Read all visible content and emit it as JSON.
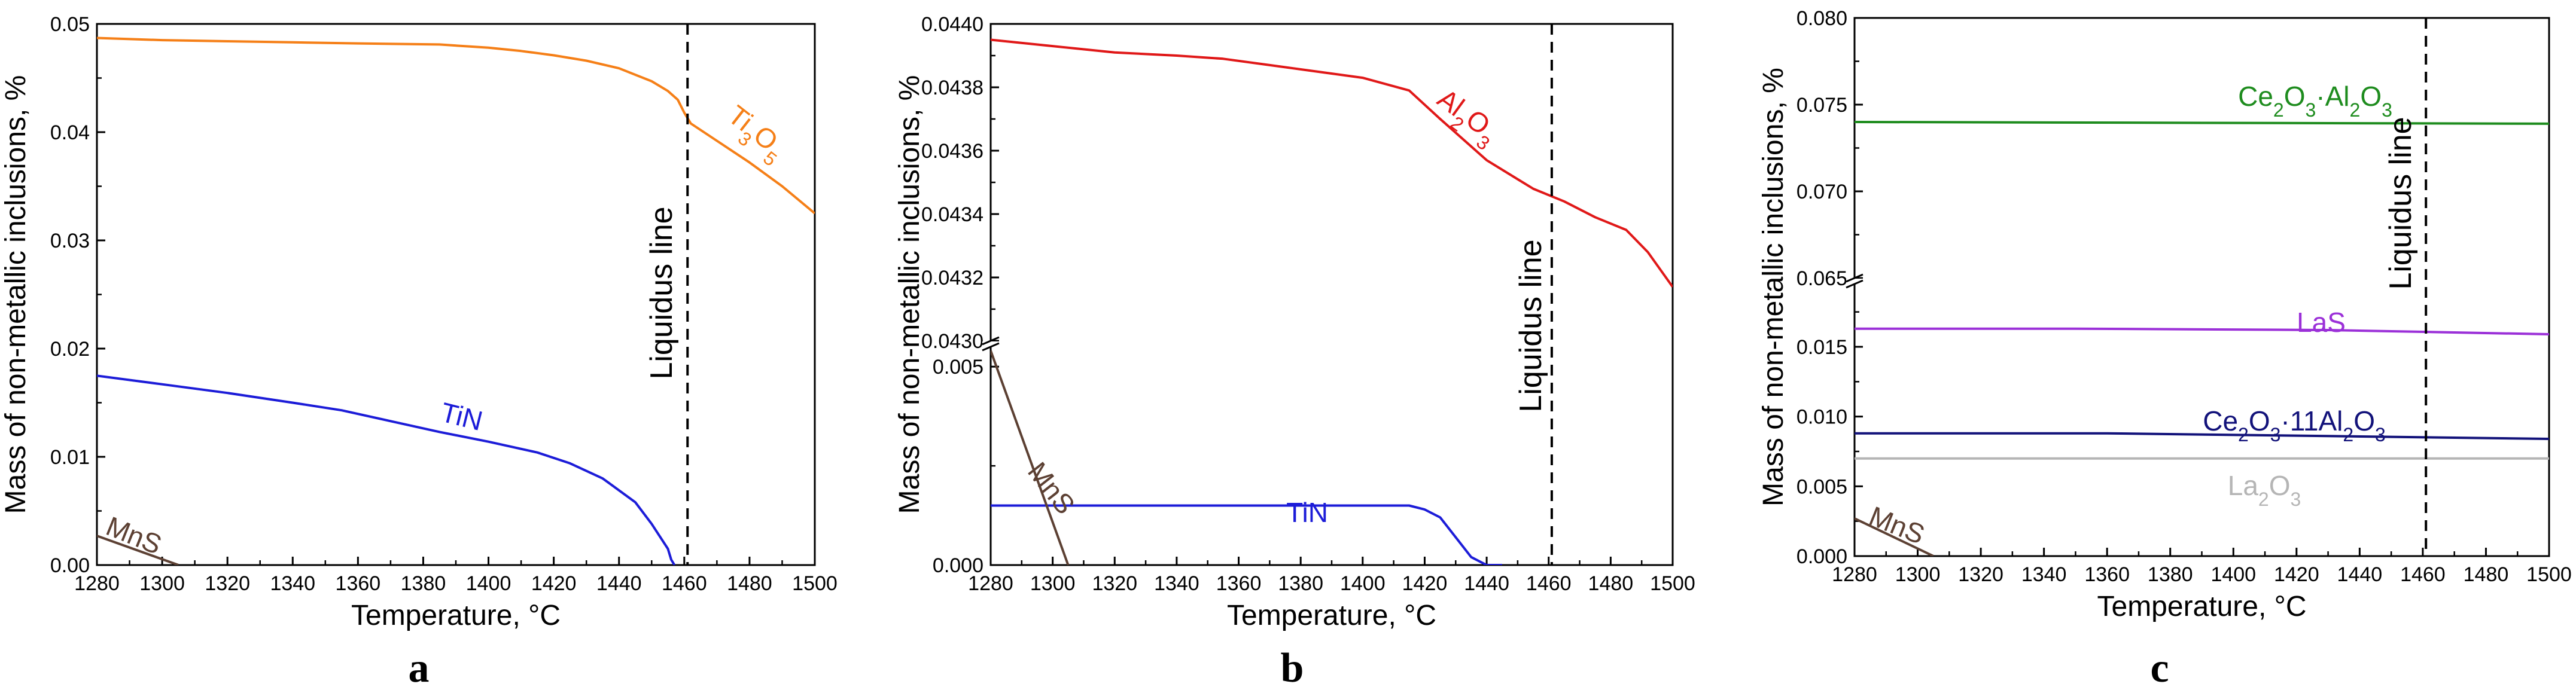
{
  "chart_data": [
    {
      "type": "line",
      "panel_label": "a",
      "xlabel": "Temperature, °C",
      "ylabel": "Mass of non-metallic inclusions, %",
      "xlim": [
        1280,
        1500
      ],
      "ylim": [
        0,
        0.05
      ],
      "xticks": [
        "1280",
        "1300",
        "1320",
        "1340",
        "1360",
        "1380",
        "1400",
        "1420",
        "1440",
        "1460",
        "1480",
        "1500"
      ],
      "yticks": [
        "0.00",
        "0.01",
        "0.02",
        "0.03",
        "0.04",
        "0.05"
      ],
      "liquidus": {
        "x": 1461,
        "label": "Liquidus line"
      },
      "series": [
        {
          "name": "Ti3O5",
          "label_main": "Ti",
          "label_sub1": "3",
          "label_mid": "O",
          "label_sub2": "5",
          "color": "#F57F17",
          "x": [
            1280,
            1300,
            1320,
            1340,
            1360,
            1385,
            1400,
            1410,
            1420,
            1430,
            1440,
            1450,
            1455,
            1458,
            1460,
            1462,
            1470,
            1480,
            1490,
            1500
          ],
          "y": [
            0.0487,
            0.0485,
            0.0484,
            0.0483,
            0.0482,
            0.0481,
            0.0478,
            0.0475,
            0.0471,
            0.0466,
            0.0459,
            0.0447,
            0.0438,
            0.043,
            0.0418,
            0.0408,
            0.0392,
            0.0372,
            0.035,
            0.0325
          ]
        },
        {
          "name": "TiN",
          "label_main": "TiN",
          "color": "#1C1CD8",
          "x": [
            1280,
            1300,
            1320,
            1340,
            1355,
            1370,
            1385,
            1400,
            1415,
            1425,
            1435,
            1445,
            1450,
            1455,
            1456,
            1457
          ],
          "y": [
            0.0175,
            0.0167,
            0.0159,
            0.015,
            0.0143,
            0.0133,
            0.0123,
            0.0114,
            0.0104,
            0.0094,
            0.008,
            0.0058,
            0.0038,
            0.0015,
            0.0005,
            0.0
          ]
        },
        {
          "name": "MnS",
          "label_main": "MnS",
          "color": "#5C4033",
          "x": [
            1280,
            1305
          ],
          "y": [
            0.0027,
            0.0
          ]
        }
      ]
    },
    {
      "type": "line",
      "panel_label": "b",
      "xlabel": "Temperature, °C",
      "ylabel": "Mass of non-metallic inclusions, %",
      "xlim": [
        1280,
        1500
      ],
      "y_axis_break": {
        "lower": [
          0,
          0.0055
        ],
        "upper": [
          0.043,
          0.044
        ]
      },
      "xticks": [
        "1280",
        "1300",
        "1320",
        "1340",
        "1360",
        "1380",
        "1400",
        "1420",
        "1440",
        "1460",
        "1480",
        "1500"
      ],
      "yticks_lower": [
        "0.000",
        "0.005"
      ],
      "yticks_upper": [
        "0.0430",
        "0.0432",
        "0.0434",
        "0.0436",
        "0.0438",
        "0.0440"
      ],
      "liquidus": {
        "x": 1461,
        "label": "Liquidus line"
      },
      "series": [
        {
          "name": "Al2O3",
          "label_main": "Al",
          "label_sub1": "2",
          "label_mid": "O",
          "label_sub2": "3",
          "color": "#E01818",
          "x": [
            1280,
            1300,
            1320,
            1340,
            1355,
            1370,
            1385,
            1400,
            1415,
            1425,
            1440,
            1455,
            1465,
            1475,
            1485,
            1492,
            1500
          ],
          "y": [
            0.04395,
            0.04393,
            0.04391,
            0.0439,
            0.04389,
            0.04387,
            0.04385,
            0.04383,
            0.04379,
            0.0437,
            0.04357,
            0.04348,
            0.04344,
            0.04339,
            0.04335,
            0.04328,
            0.04317
          ]
        },
        {
          "name": "TiN",
          "label_main": "TiN",
          "color": "#1C1CD8",
          "x": [
            1280,
            1300,
            1340,
            1380,
            1415,
            1420,
            1425,
            1430,
            1435,
            1440,
            1445
          ],
          "y": [
            0.0015,
            0.0015,
            0.0015,
            0.0015,
            0.0015,
            0.0014,
            0.0012,
            0.0007,
            0.0002,
            0.0,
            0.0
          ]
        },
        {
          "name": "MnS",
          "label_main": "MnS",
          "color": "#5C4033",
          "x": [
            1280,
            1305
          ],
          "y": [
            0.0054,
            0.0
          ]
        }
      ]
    },
    {
      "type": "line",
      "panel_label": "c",
      "xlabel": "Temperature, °C",
      "ylabel": "Mass of non-metallic inclusions, %",
      "xlim": [
        1280,
        1500
      ],
      "y_axis_break": {
        "lower": [
          0,
          0.0195
        ],
        "upper": [
          0.065,
          0.08
        ]
      },
      "xticks": [
        "1280",
        "1300",
        "1320",
        "1340",
        "1360",
        "1380",
        "1400",
        "1420",
        "1440",
        "1460",
        "1480",
        "1500"
      ],
      "yticks_lower": [
        "0.000",
        "0.005",
        "0.010",
        "0.015"
      ],
      "yticks_upper": [
        "0.065",
        "0.070",
        "0.075",
        "0.080"
      ],
      "liquidus": {
        "x": 1461,
        "label": "Liquidus line"
      },
      "series": [
        {
          "name": "Ce2O3·Al2O3",
          "label_parts": [
            "Ce",
            "2",
            "O",
            "3",
            "·Al",
            "2",
            "O",
            "3"
          ],
          "color": "#1E8C1E",
          "x": [
            1280,
            1500
          ],
          "y": [
            0.074,
            0.0739
          ]
        },
        {
          "name": "LaS",
          "label_main": "LaS",
          "color": "#9B30D8",
          "x": [
            1280,
            1350,
            1430,
            1500
          ],
          "y": [
            0.0163,
            0.0163,
            0.0162,
            0.0159
          ]
        },
        {
          "name": "Ce2O3·11Al2O3",
          "label_parts": [
            "Ce",
            "2",
            "O",
            "3",
            "·11Al",
            "2",
            "O",
            "3"
          ],
          "color": "#12127A",
          "x": [
            1280,
            1360,
            1430,
            1500
          ],
          "y": [
            0.0088,
            0.0088,
            0.0086,
            0.0084
          ]
        },
        {
          "name": "La2O3",
          "label_parts": [
            "La",
            "2",
            "O",
            "3"
          ],
          "color": "#B5B5B5",
          "x": [
            1280,
            1500
          ],
          "y": [
            0.007,
            0.007
          ]
        },
        {
          "name": "MnS",
          "label_main": "MnS",
          "color": "#5C4033",
          "x": [
            1280,
            1305
          ],
          "y": [
            0.0027,
            0.0
          ]
        }
      ]
    }
  ]
}
